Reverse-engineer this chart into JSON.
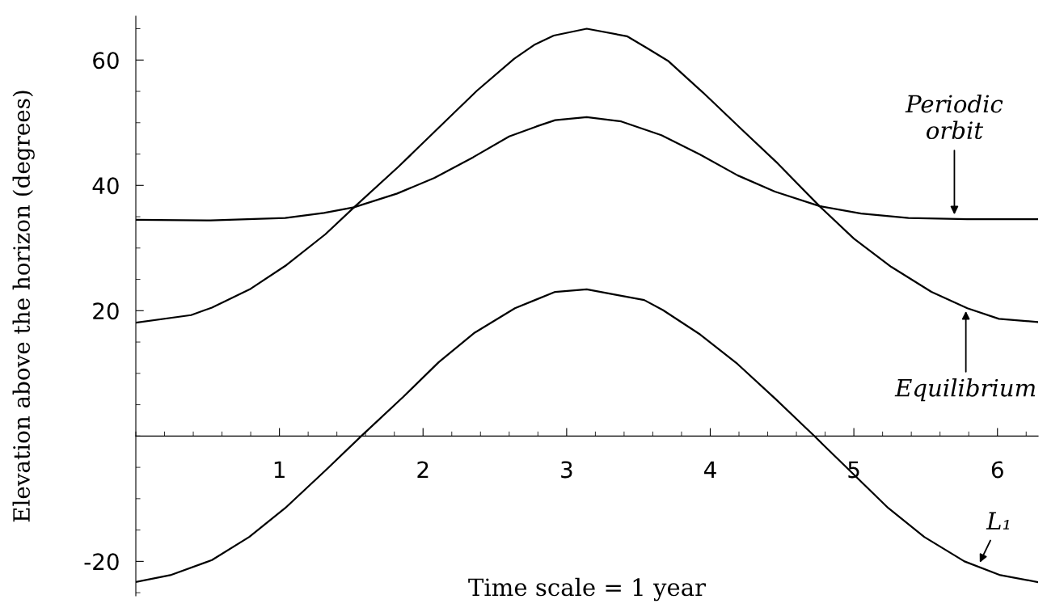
{
  "chart_data": {
    "type": "line",
    "xlabel": "Time scale = 1 year",
    "ylabel": "Elevation above the horizon (degrees)",
    "xlim": [
      0,
      6.283
    ],
    "ylim": [
      -25.5,
      67
    ],
    "xticks": [
      1,
      2,
      3,
      4,
      5,
      6
    ],
    "yticks": [
      -20,
      20,
      40,
      60
    ],
    "grid": false,
    "legend": false,
    "marker": "none",
    "line_style": "solid",
    "series": [
      {
        "color": "#000000",
        "x": [
          0,
          0.385,
          0.53,
          0.8,
          1.05,
          1.32,
          1.52,
          1.83,
          2.1,
          2.375,
          2.635,
          2.78,
          2.91,
          3.14,
          3.42,
          3.56,
          3.71,
          3.95,
          4.22,
          4.47,
          4.76,
          5.0,
          5.26,
          5.54,
          5.79,
          6.01,
          6.28
        ],
        "values": [
          18.1,
          19.3,
          20.5,
          23.5,
          27.3,
          32.2,
          36.5,
          43.0,
          49.0,
          55.1,
          60.2,
          62.5,
          63.9,
          65.0,
          63.8,
          61.9,
          59.8,
          54.8,
          48.9,
          43.5,
          36.7,
          31.5,
          27.0,
          23.0,
          20.4,
          18.7,
          18.2
        ]
      },
      {
        "color": "#000000",
        "x": [
          0,
          0.52,
          1.04,
          1.31,
          1.52,
          1.82,
          2.08,
          2.35,
          2.6,
          2.79,
          2.92,
          3.14,
          3.38,
          3.66,
          3.93,
          4.19,
          4.45,
          4.76,
          5.05,
          5.38,
          5.79,
          6.28
        ],
        "values": [
          34.5,
          34.4,
          34.8,
          35.6,
          36.5,
          38.7,
          41.2,
          44.5,
          47.8,
          49.4,
          50.4,
          50.9,
          50.2,
          48.0,
          44.9,
          41.6,
          39.0,
          36.7,
          35.5,
          34.8,
          34.6,
          34.6
        ]
      },
      {
        "color": "#000000",
        "x": [
          0,
          0.24,
          0.53,
          0.79,
          1.04,
          1.32,
          1.57,
          1.86,
          2.11,
          2.36,
          2.64,
          2.78,
          2.92,
          3.14,
          3.35,
          3.54,
          3.67,
          3.93,
          4.19,
          4.46,
          4.72,
          5.24,
          5.49,
          5.77,
          6.02,
          6.28
        ],
        "values": [
          -23.3,
          -22.2,
          -19.8,
          -16.1,
          -11.5,
          -5.5,
          0,
          6.2,
          11.8,
          16.5,
          20.4,
          21.7,
          23.0,
          23.4,
          22.5,
          21.7,
          20.1,
          16.2,
          11.5,
          5.8,
          0.1,
          -11.5,
          -16.1,
          -20.0,
          -22.2,
          -23.3
        ]
      }
    ],
    "annotations": [
      {
        "text": "Periodic\norbit",
        "x": 5.7,
        "y": 35.0
      },
      {
        "text": "Equilibrium",
        "x": 5.78,
        "y": 20.3
      },
      {
        "text": "L₁",
        "x": 5.87,
        "y": -20.5
      }
    ]
  }
}
